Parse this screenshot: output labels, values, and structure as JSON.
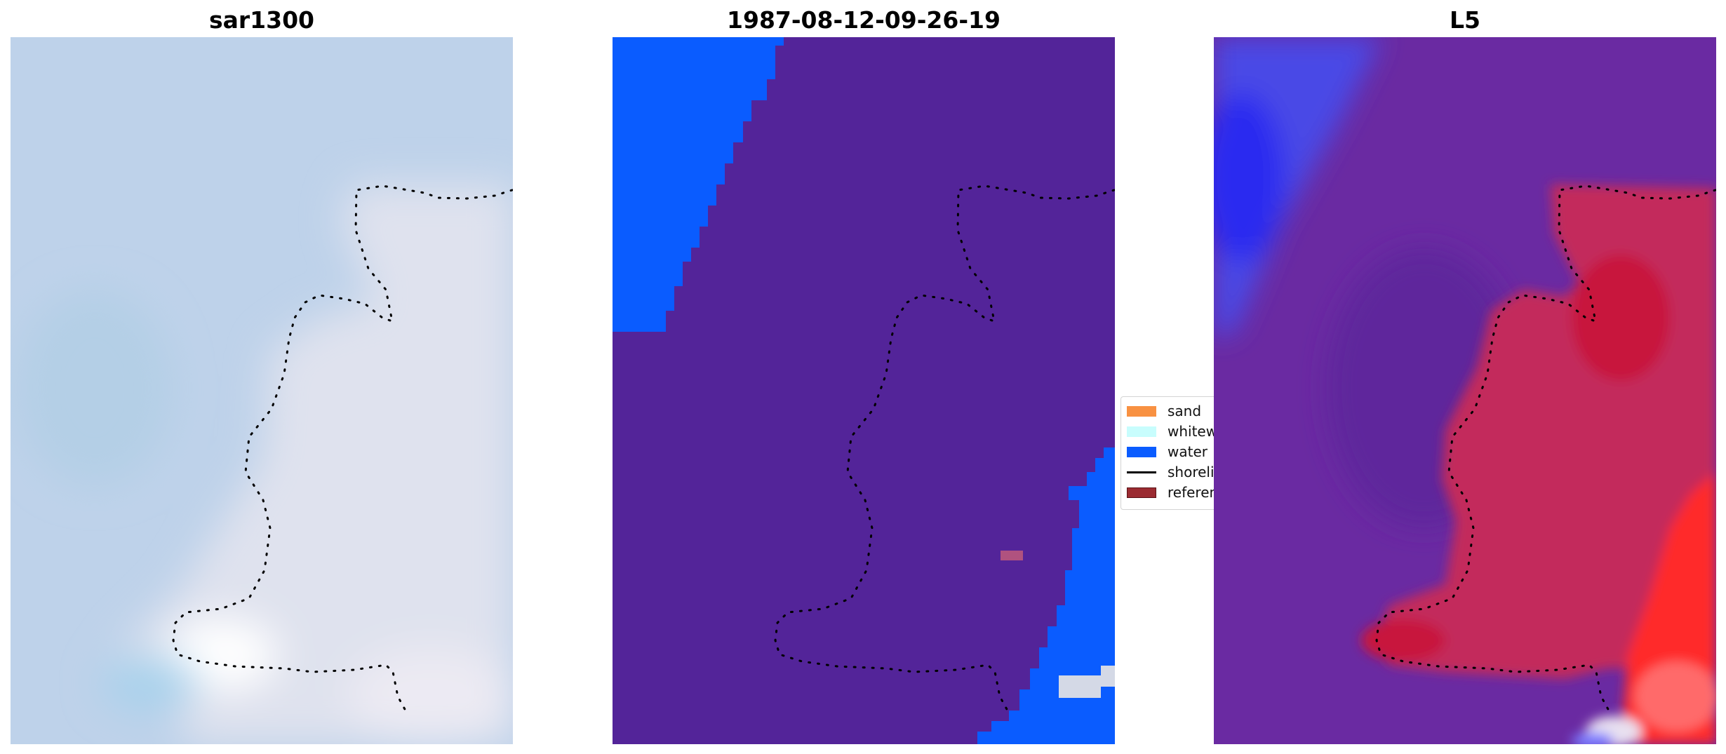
{
  "panels": [
    {
      "title": "sar1300"
    },
    {
      "title": "1987-08-12-09-26-19"
    },
    {
      "title": "L5"
    }
  ],
  "legend": {
    "items": [
      {
        "label": "sand",
        "color": "#f89142"
      },
      {
        "label": "whitewater",
        "color": "#c8fdfd"
      },
      {
        "label": "water",
        "color": "#0a5cff"
      },
      {
        "label": "shoreline",
        "color": "#000000"
      },
      {
        "label": "reference",
        "color": "#9b2b31"
      }
    ]
  },
  "colors": {
    "classified_land": "#532499",
    "classified_water": "#0a5cff",
    "classified_whitewater_patch": "#d4d9e6",
    "classified_reference_patch": "#b0527f",
    "sar_base": "#bed2ea",
    "sar_bright": "#f2f2f8",
    "l5_blue": "#3b4df0",
    "l5_purple": "#6a2aa2",
    "l5_red": "#c8163c",
    "shoreline": "#000000"
  }
}
